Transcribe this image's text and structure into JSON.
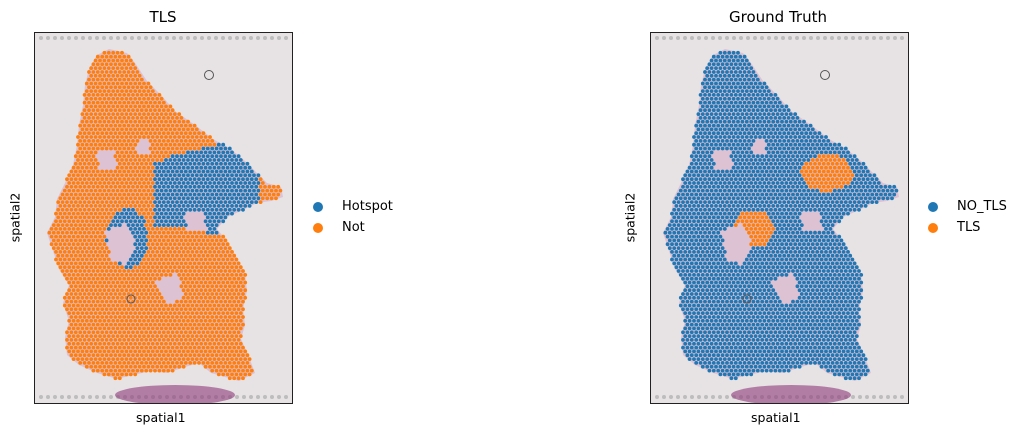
{
  "colors": {
    "hotspot": "#1f77b4",
    "not": "#ff7f0e",
    "no_tls": "#1f77b4",
    "tls": "#ff7f0e",
    "background": "#e7e2e4",
    "tissue": "#c98ab0"
  },
  "chart_data": [
    {
      "type": "scatter",
      "title": "TLS",
      "xlabel": "spatial1",
      "ylabel": "spatial2",
      "legend_position": "right-outside",
      "grid": false,
      "series": [
        {
          "name": "Hotspot",
          "color": "#1f77b4"
        },
        {
          "name": "Not",
          "color": "#ff7f0e"
        }
      ]
    },
    {
      "type": "scatter",
      "title": "Ground Truth",
      "xlabel": "spatial1",
      "ylabel": "spatial2",
      "legend_position": "right-outside",
      "grid": false,
      "series": [
        {
          "name": "NO_TLS",
          "color": "#1f77b4"
        },
        {
          "name": "TLS",
          "color": "#ff7f0e"
        }
      ]
    }
  ]
}
